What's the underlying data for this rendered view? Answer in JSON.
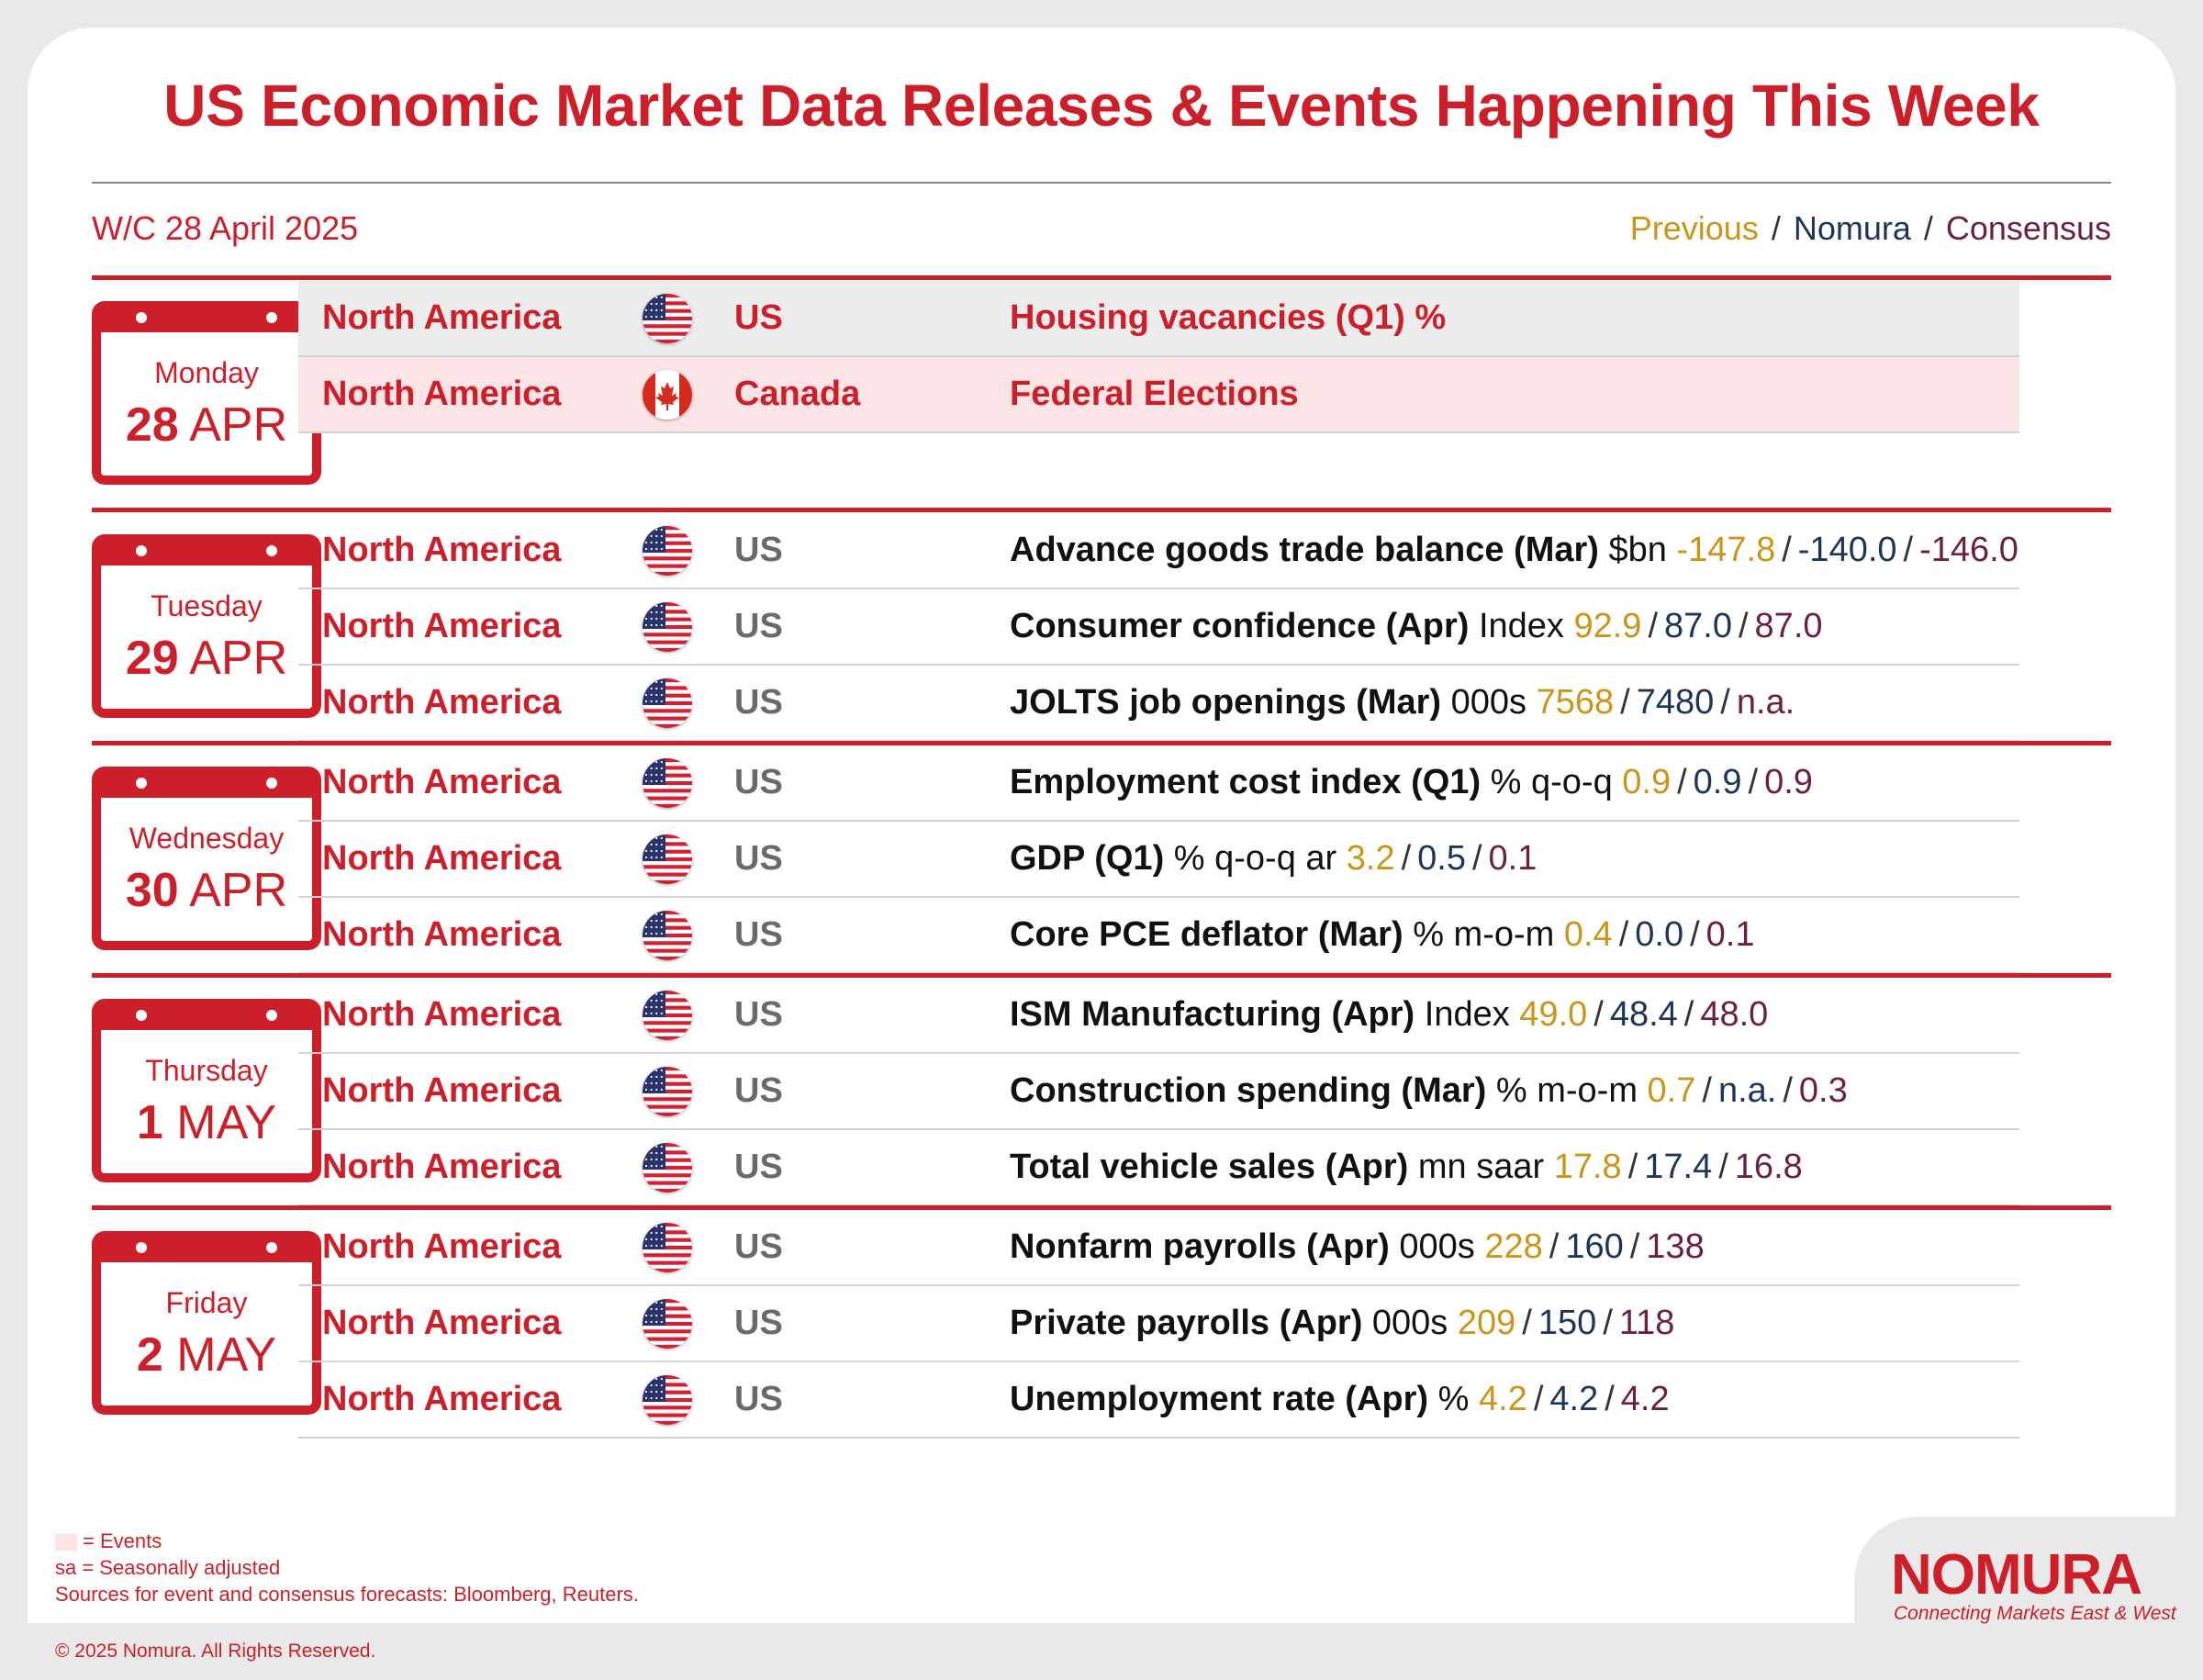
{
  "header": {
    "title": "US Economic Market Data Releases & Events Happening This Week",
    "week": "W/C 28 April 2025",
    "legend": {
      "previous": "Previous",
      "nomura": "Nomura",
      "consensus": "Consensus",
      "sep": "/"
    }
  },
  "days": [
    {
      "dayname": "Monday",
      "daynum": "28",
      "month": "APR",
      "rows": [
        {
          "region": "North America",
          "flag": "us-flag-icon",
          "country": "US",
          "event": "Housing vacancies (Q1) %",
          "style": "event-grey"
        },
        {
          "region": "North America",
          "flag": "canada-flag-icon",
          "country": "Canada",
          "event": "Federal Elections",
          "style": "event-pink"
        }
      ]
    },
    {
      "dayname": "Tuesday",
      "daynum": "29",
      "month": "APR",
      "rows": [
        {
          "region": "North America",
          "flag": "us-flag-icon",
          "country": "US",
          "name": "Advance goods trade balance (Mar)",
          "unit": "$bn",
          "previous": "-147.8",
          "nomura": "-140.0",
          "consensus": "-146.0"
        },
        {
          "region": "North America",
          "flag": "us-flag-icon",
          "country": "US",
          "name": "Consumer confidence (Apr)",
          "unit": "Index",
          "previous": "92.9",
          "nomura": "87.0",
          "consensus": "87.0"
        },
        {
          "region": "North America",
          "flag": "us-flag-icon",
          "country": "US",
          "name": "JOLTS job openings (Mar)",
          "unit": "000s",
          "previous": "7568",
          "nomura": "7480",
          "consensus": "n.a."
        }
      ]
    },
    {
      "dayname": "Wednesday",
      "daynum": "30",
      "month": "APR",
      "rows": [
        {
          "region": "North America",
          "flag": "us-flag-icon",
          "country": "US",
          "name": "Employment cost index (Q1)",
          "unit": "% q-o-q",
          "previous": "0.9",
          "nomura": "0.9",
          "consensus": "0.9"
        },
        {
          "region": "North America",
          "flag": "us-flag-icon",
          "country": "US",
          "name": "GDP (Q1)",
          "unit": "% q-o-q ar",
          "previous": "3.2",
          "nomura": "0.5",
          "consensus": "0.1"
        },
        {
          "region": "North America",
          "flag": "us-flag-icon",
          "country": "US",
          "name": "Core PCE deflator (Mar)",
          "unit": "% m-o-m",
          "previous": "0.4",
          "nomura": "0.0",
          "consensus": "0.1"
        }
      ]
    },
    {
      "dayname": "Thursday",
      "daynum": "1",
      "month": "MAY",
      "rows": [
        {
          "region": "North America",
          "flag": "us-flag-icon",
          "country": "US",
          "name": "ISM Manufacturing (Apr)",
          "unit": "Index",
          "previous": "49.0",
          "nomura": "48.4",
          "consensus": "48.0"
        },
        {
          "region": "North America",
          "flag": "us-flag-icon",
          "country": "US",
          "name": "Construction spending (Mar)",
          "unit": "% m-o-m",
          "previous": "0.7",
          "nomura": "n.a.",
          "consensus": "0.3"
        },
        {
          "region": "North America",
          "flag": "us-flag-icon",
          "country": "US",
          "name": "Total vehicle sales (Apr)",
          "unit": "mn saar",
          "previous": "17.8",
          "nomura": "17.4",
          "consensus": "16.8"
        }
      ]
    },
    {
      "dayname": "Friday",
      "daynum": "2",
      "month": "MAY",
      "rows": [
        {
          "region": "North America",
          "flag": "us-flag-icon",
          "country": "US",
          "name": "Nonfarm payrolls (Apr)",
          "unit": "000s",
          "previous": "228",
          "nomura": "160",
          "consensus": "138"
        },
        {
          "region": "North America",
          "flag": "us-flag-icon",
          "country": "US",
          "name": "Private payrolls (Apr)",
          "unit": "000s",
          "previous": "209",
          "nomura": "150",
          "consensus": "118"
        },
        {
          "region": "North America",
          "flag": "us-flag-icon",
          "country": "US",
          "name": "Unemployment rate (Apr)",
          "unit": "%",
          "previous": "4.2",
          "nomura": "4.2",
          "consensus": "4.2"
        }
      ]
    }
  ],
  "footer": {
    "events_key": "= Events",
    "sa_note": "sa = Seasonally adjusted",
    "sources": "Sources for event and consensus forecasts: Bloomberg, Reuters.",
    "copyright": "© 2025 Nomura. All Rights Reserved.",
    "logo": "NOMURA",
    "tagline": "Connecting Markets East & West"
  },
  "colors": {
    "brand_red": "#cc1f2a",
    "previous": "#c9951b",
    "nomura": "#1d3556",
    "consensus": "#6b1f45",
    "event_highlight": "#fbe4e5"
  }
}
